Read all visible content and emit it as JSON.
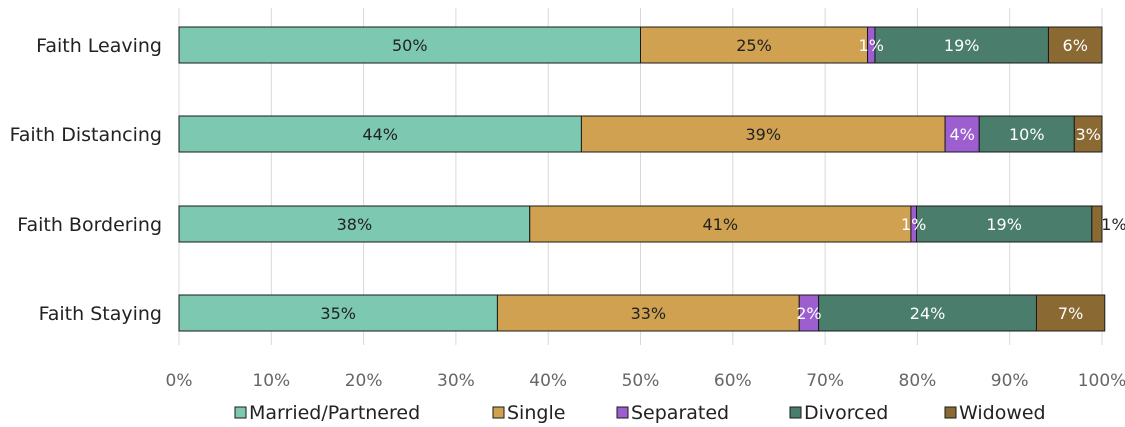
{
  "chart_data": {
    "type": "bar",
    "orientation": "horizontal",
    "stacked": true,
    "categories": [
      "Faith Leaving",
      "Faith Distancing",
      "Faith Bordering",
      "Faith Staying"
    ],
    "series": [
      {
        "name": "Married/Partnered",
        "color": "#7dc8b0",
        "label_color": "#222222",
        "values": [
          50,
          43.6,
          38,
          34.5
        ],
        "labels": [
          "50%",
          "44%",
          "38%",
          "35%"
        ]
      },
      {
        "name": "Single",
        "color": "#cfa150",
        "label_color": "#222222",
        "values": [
          24.6,
          39.4,
          41.3,
          32.7
        ],
        "labels": [
          "25%",
          "39%",
          "41%",
          "33%"
        ]
      },
      {
        "name": "Separated",
        "color": "#9d5fd0",
        "label_color": "#ffffff",
        "values": [
          0.8,
          3.7,
          0.6,
          2.1
        ],
        "labels": [
          "1%",
          "4%",
          "1%",
          "2%"
        ]
      },
      {
        "name": "Divorced",
        "color": "#4a7d6c",
        "label_color": "#ffffff",
        "values": [
          18.8,
          10.3,
          19.0,
          23.6
        ],
        "labels": [
          "19%",
          "10%",
          "19%",
          "24%"
        ]
      },
      {
        "name": "Widowed",
        "color": "#8a6a32",
        "label_color": "#ffffff",
        "values": [
          5.8,
          3.0,
          1.1,
          7.4
        ],
        "labels": [
          "6%",
          "3%",
          "1%",
          "7%"
        ]
      }
    ],
    "xlim": [
      0,
      100
    ],
    "x_ticks": [
      "0%",
      "10%",
      "20%",
      "30%",
      "40%",
      "50%",
      "60%",
      "70%",
      "80%",
      "90%",
      "100%"
    ],
    "grid": true,
    "legend": "bottom"
  }
}
